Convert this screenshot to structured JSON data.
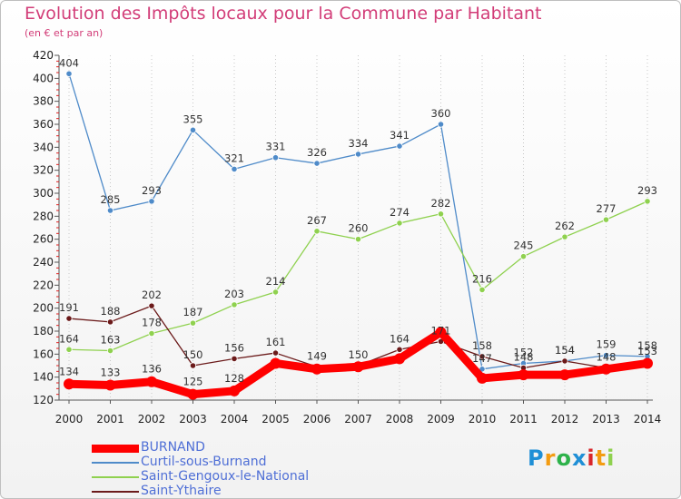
{
  "page": {
    "title": "Evolution des Impôts locaux pour la Commune par Habitant",
    "subtitle": "(en € et par an)"
  },
  "chart_data": {
    "type": "line",
    "title": "Evolution des Impôts locaux pour la Commune par Habitant",
    "subtitle": "(en € et par an)",
    "xlabel": "",
    "ylabel": "",
    "x": [
      2000,
      2001,
      2002,
      2003,
      2004,
      2005,
      2006,
      2007,
      2008,
      2009,
      2010,
      2011,
      2012,
      2013,
      2014
    ],
    "ylim": [
      120,
      420
    ],
    "yticks": [
      120,
      140,
      160,
      180,
      200,
      220,
      240,
      260,
      280,
      300,
      320,
      340,
      360,
      380,
      400,
      420
    ],
    "grid": "vertical",
    "legend_position": "bottom-left",
    "series": [
      {
        "name": "BURNAND",
        "color": "#ff0000",
        "values": [
          134,
          133,
          136,
          125,
          128,
          152,
          147,
          149,
          156,
          179,
          139,
          142,
          142,
          147,
          152
        ],
        "labels": [
          "134",
          "133",
          "136",
          "125",
          "128",
          "",
          "",
          "",
          "",
          "",
          "",
          "",
          "",
          "",
          ""
        ]
      },
      {
        "name": "Curtil-sous-Burnand",
        "color": "#4f8bc9",
        "values": [
          404,
          285,
          293,
          355,
          321,
          331,
          326,
          334,
          341,
          360,
          147,
          152,
          154,
          159,
          158
        ],
        "labels": [
          "404",
          "285",
          "293",
          "355",
          "321",
          "331",
          "326",
          "334",
          "341",
          "360",
          "147",
          "152",
          "154",
          "159",
          "158"
        ]
      },
      {
        "name": "Saint-Gengoux-le-National",
        "color": "#8fd14f",
        "values": [
          164,
          163,
          178,
          187,
          203,
          214,
          267,
          260,
          274,
          282,
          216,
          245,
          262,
          277,
          293
        ],
        "labels": [
          "164",
          "163",
          "178",
          "187",
          "203",
          "214",
          "267",
          "260",
          "274",
          "282",
          "216",
          "245",
          "262",
          "277",
          "293"
        ]
      },
      {
        "name": "Saint-Ythaire",
        "color": "#6b1a1a",
        "values": [
          191,
          188,
          202,
          150,
          156,
          161,
          149,
          150,
          164,
          171,
          158,
          148,
          154,
          148,
          153
        ],
        "labels": [
          "191",
          "188",
          "202",
          "150",
          "156",
          "161",
          "149",
          "150",
          "164",
          "171",
          "158",
          "148",
          "154",
          "148",
          "153"
        ]
      }
    ]
  },
  "legend": {
    "items": [
      "BURNAND",
      "Curtil-sous-Burnand",
      "Saint-Gengoux-le-National",
      "Saint-Ythaire"
    ]
  },
  "logo": {
    "text": "Proxiti",
    "letters": [
      "P",
      "r",
      "o",
      "x",
      "i",
      "t",
      "i"
    ],
    "colors": [
      "#1f8fd6",
      "#f39c12",
      "#2db24a",
      "#1f8fd6",
      "#d9262b",
      "#f39c12",
      "#8fd14f"
    ]
  }
}
